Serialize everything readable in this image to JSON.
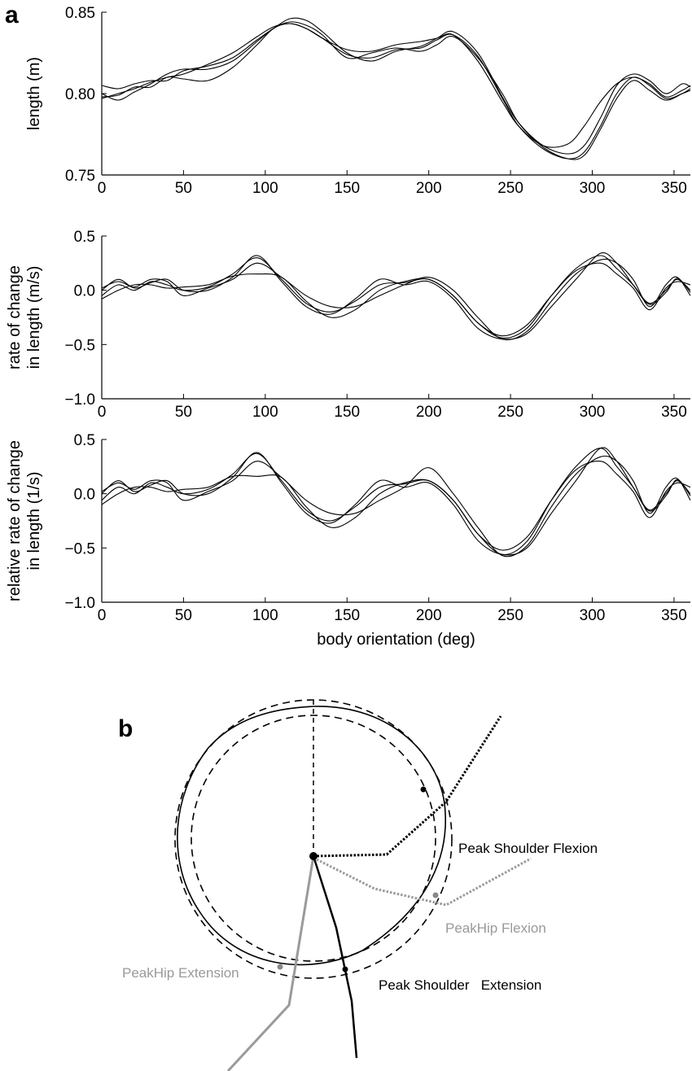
{
  "panel_labels": {
    "a": "a",
    "b": "b"
  },
  "chart_data": [
    {
      "type": "line",
      "ylabel": [
        "length (m)"
      ],
      "xlabel": "",
      "xlim": [
        0,
        360
      ],
      "ylim": [
        0.75,
        0.85
      ],
      "xticks": [
        0,
        50,
        100,
        150,
        200,
        250,
        300,
        350
      ],
      "yticks": [
        0.75,
        0.8,
        0.85
      ],
      "ytick_labels": [
        "0.75",
        "0.80",
        "0.85"
      ],
      "grid": false,
      "series": [
        {
          "x": [
            0,
            10,
            20,
            30,
            40,
            50,
            65,
            80,
            95,
            105,
            115,
            125,
            135,
            150,
            165,
            180,
            195,
            205,
            215,
            230,
            245,
            255,
            270,
            285,
            295,
            305,
            315,
            325,
            335,
            345,
            355,
            360
          ],
          "values": [
            0.797,
            0.8,
            0.803,
            0.807,
            0.81,
            0.812,
            0.818,
            0.825,
            0.835,
            0.841,
            0.843,
            0.84,
            0.834,
            0.827,
            0.826,
            0.83,
            0.832,
            0.834,
            0.836,
            0.82,
            0.795,
            0.78,
            0.768,
            0.769,
            0.78,
            0.795,
            0.806,
            0.81,
            0.806,
            0.798,
            0.802,
            0.805
          ]
        },
        {
          "x": [
            0,
            10,
            20,
            30,
            40,
            50,
            65,
            80,
            95,
            105,
            115,
            125,
            135,
            150,
            165,
            180,
            195,
            205,
            215,
            230,
            245,
            255,
            270,
            285,
            295,
            305,
            315,
            325,
            335,
            345,
            355,
            360
          ],
          "values": [
            0.805,
            0.803,
            0.806,
            0.808,
            0.808,
            0.814,
            0.817,
            0.822,
            0.833,
            0.84,
            0.846,
            0.845,
            0.838,
            0.825,
            0.82,
            0.826,
            0.829,
            0.834,
            0.838,
            0.825,
            0.798,
            0.782,
            0.768,
            0.763,
            0.768,
            0.785,
            0.805,
            0.812,
            0.808,
            0.8,
            0.806,
            0.804
          ]
        },
        {
          "x": [
            0,
            10,
            20,
            30,
            40,
            50,
            65,
            80,
            95,
            105,
            115,
            125,
            135,
            150,
            165,
            180,
            195,
            205,
            215,
            230,
            245,
            255,
            270,
            285,
            295,
            305,
            315,
            325,
            335,
            345,
            355,
            360
          ],
          "values": [
            0.8,
            0.796,
            0.801,
            0.806,
            0.812,
            0.815,
            0.815,
            0.82,
            0.832,
            0.84,
            0.844,
            0.842,
            0.836,
            0.822,
            0.825,
            0.828,
            0.826,
            0.83,
            0.835,
            0.822,
            0.8,
            0.782,
            0.767,
            0.76,
            0.762,
            0.778,
            0.797,
            0.808,
            0.802,
            0.796,
            0.8,
            0.803
          ]
        },
        {
          "x": [
            0,
            10,
            20,
            30,
            40,
            50,
            65,
            80,
            95,
            105,
            115,
            125,
            135,
            150,
            165,
            180,
            195,
            205,
            215,
            230,
            245,
            255,
            270,
            285,
            295,
            305,
            315,
            325,
            335,
            345,
            355,
            360
          ],
          "values": [
            0.798,
            0.799,
            0.804,
            0.804,
            0.81,
            0.809,
            0.808,
            0.816,
            0.83,
            0.84,
            0.843,
            0.84,
            0.834,
            0.824,
            0.822,
            0.827,
            0.828,
            0.833,
            0.836,
            0.823,
            0.797,
            0.78,
            0.766,
            0.76,
            0.764,
            0.78,
            0.8,
            0.81,
            0.805,
            0.797,
            0.8,
            0.802
          ]
        }
      ]
    },
    {
      "type": "line",
      "ylabel": [
        "rate of change",
        "in length (m/s)"
      ],
      "xlabel": "",
      "xlim": [
        0,
        360
      ],
      "ylim": [
        -1.0,
        0.5
      ],
      "xticks": [
        0,
        50,
        100,
        150,
        200,
        250,
        300,
        350
      ],
      "yticks": [
        -1.0,
        -0.5,
        0.0,
        0.5
      ],
      "ytick_labels": [
        "−1.0",
        "−0.5",
        "0.0",
        "0.5"
      ],
      "grid": false,
      "series": [
        {
          "x": [
            0,
            10,
            20,
            30,
            40,
            50,
            65,
            80,
            95,
            110,
            125,
            140,
            155,
            170,
            185,
            200,
            215,
            230,
            245,
            260,
            275,
            290,
            305,
            315,
            325,
            335,
            345,
            352,
            360
          ],
          "values": [
            -0.05,
            0.05,
            0.0,
            0.08,
            0.05,
            0.0,
            0.03,
            0.15,
            0.3,
            0.1,
            -0.12,
            -0.2,
            -0.1,
            0.05,
            0.07,
            0.1,
            -0.05,
            -0.3,
            -0.44,
            -0.35,
            -0.05,
            0.2,
            0.32,
            0.2,
            0.05,
            -0.12,
            0.0,
            0.1,
            0.0
          ]
        },
        {
          "x": [
            0,
            10,
            20,
            30,
            40,
            50,
            65,
            80,
            95,
            110,
            125,
            140,
            155,
            170,
            185,
            200,
            215,
            230,
            245,
            260,
            275,
            290,
            305,
            315,
            325,
            335,
            345,
            352,
            360
          ],
          "values": [
            0.02,
            0.08,
            0.03,
            0.1,
            0.08,
            -0.05,
            0.02,
            0.1,
            0.25,
            0.12,
            -0.05,
            -0.15,
            -0.15,
            -0.05,
            0.05,
            0.12,
            0.0,
            -0.25,
            -0.45,
            -0.38,
            -0.1,
            0.15,
            0.28,
            0.25,
            0.1,
            -0.15,
            0.05,
            0.12,
            -0.05
          ]
        },
        {
          "x": [
            0,
            10,
            20,
            30,
            40,
            50,
            65,
            80,
            95,
            110,
            125,
            140,
            155,
            170,
            185,
            200,
            215,
            230,
            245,
            260,
            275,
            290,
            305,
            315,
            325,
            335,
            345,
            352,
            360
          ],
          "values": [
            -0.08,
            0.0,
            0.05,
            0.05,
            0.02,
            0.03,
            0.05,
            0.13,
            0.15,
            0.12,
            -0.1,
            -0.25,
            -0.18,
            0.0,
            0.08,
            0.1,
            -0.05,
            -0.3,
            -0.42,
            -0.32,
            -0.05,
            0.18,
            0.25,
            0.15,
            0.02,
            -0.18,
            0.02,
            0.08,
            0.05
          ]
        },
        {
          "x": [
            0,
            10,
            20,
            30,
            40,
            50,
            65,
            80,
            95,
            110,
            125,
            140,
            155,
            170,
            185,
            200,
            215,
            230,
            245,
            260,
            275,
            290,
            305,
            315,
            325,
            335,
            345,
            352,
            360
          ],
          "values": [
            0.0,
            0.1,
            0.02,
            0.07,
            0.1,
            0.0,
            0.0,
            0.12,
            0.32,
            0.08,
            -0.15,
            -0.22,
            -0.08,
            0.1,
            0.05,
            0.08,
            -0.08,
            -0.35,
            -0.45,
            -0.4,
            -0.15,
            0.1,
            0.34,
            0.25,
            0.05,
            -0.13,
            -0.02,
            0.11,
            -0.02
          ]
        }
      ]
    },
    {
      "type": "line",
      "ylabel": [
        "relative rate of change",
        "in length (1/s)"
      ],
      "xlabel": "body orientation (deg)",
      "xlim": [
        0,
        360
      ],
      "ylim": [
        -1.0,
        0.5
      ],
      "xticks": [
        0,
        50,
        100,
        150,
        200,
        250,
        300,
        350
      ],
      "yticks": [
        -1.0,
        -0.5,
        0.0,
        0.5
      ],
      "ytick_labels": [
        "−1.0",
        "−0.5",
        "0.0",
        "0.5"
      ],
      "grid": false,
      "series": [
        {
          "x": [
            0,
            10,
            20,
            30,
            40,
            50,
            65,
            80,
            95,
            110,
            125,
            140,
            155,
            170,
            185,
            200,
            215,
            230,
            245,
            260,
            275,
            290,
            305,
            315,
            325,
            335,
            345,
            352,
            360
          ],
          "values": [
            -0.06,
            0.06,
            0.0,
            0.1,
            0.06,
            0.0,
            0.04,
            0.18,
            0.37,
            0.12,
            -0.15,
            -0.25,
            -0.12,
            0.06,
            0.09,
            0.12,
            -0.06,
            -0.37,
            -0.56,
            -0.44,
            -0.06,
            0.25,
            0.42,
            0.25,
            0.06,
            -0.15,
            0.0,
            0.12,
            0.0
          ]
        },
        {
          "x": [
            0,
            10,
            20,
            30,
            40,
            50,
            65,
            80,
            95,
            110,
            125,
            140,
            155,
            170,
            185,
            200,
            215,
            230,
            245,
            260,
            275,
            290,
            305,
            315,
            325,
            335,
            345,
            352,
            360
          ],
          "values": [
            0.02,
            0.1,
            0.04,
            0.12,
            0.1,
            -0.06,
            0.02,
            0.12,
            0.3,
            0.15,
            -0.06,
            -0.18,
            -0.18,
            -0.06,
            0.06,
            0.24,
            0.0,
            -0.31,
            -0.57,
            -0.48,
            -0.12,
            0.18,
            0.34,
            0.3,
            0.12,
            -0.18,
            0.06,
            0.14,
            -0.06
          ]
        },
        {
          "x": [
            0,
            10,
            20,
            30,
            40,
            50,
            65,
            80,
            95,
            110,
            125,
            140,
            155,
            170,
            185,
            200,
            215,
            230,
            245,
            260,
            275,
            290,
            305,
            315,
            325,
            335,
            345,
            352,
            360
          ],
          "values": [
            -0.1,
            0.0,
            0.06,
            0.06,
            0.02,
            0.04,
            0.06,
            0.16,
            0.16,
            0.15,
            -0.12,
            -0.31,
            -0.22,
            0.0,
            0.1,
            0.12,
            -0.06,
            -0.37,
            -0.52,
            -0.4,
            -0.06,
            0.22,
            0.3,
            0.18,
            0.02,
            -0.22,
            0.02,
            0.1,
            0.06
          ]
        },
        {
          "x": [
            0,
            10,
            20,
            30,
            40,
            50,
            65,
            80,
            95,
            110,
            125,
            140,
            155,
            170,
            185,
            200,
            215,
            230,
            245,
            260,
            275,
            290,
            305,
            315,
            325,
            335,
            345,
            352,
            360
          ],
          "values": [
            0.0,
            0.12,
            0.02,
            0.08,
            0.12,
            0.0,
            0.0,
            0.15,
            0.38,
            0.1,
            -0.18,
            -0.27,
            -0.1,
            0.12,
            0.06,
            0.1,
            -0.1,
            -0.43,
            -0.56,
            -0.5,
            -0.18,
            0.12,
            0.42,
            0.3,
            0.06,
            -0.16,
            -0.02,
            0.13,
            -0.02
          ]
        }
      ]
    }
  ],
  "diagram": {
    "labels": {
      "peak_shoulder_flexion": "Peak Shoulder Flexion",
      "peak_hip_flexion": "PeakHip Flexion",
      "peak_hip_extension": "PeakHip Extension",
      "peak_shoulder_extension": "Peak Shoulder   Extension"
    },
    "colors": {
      "shoulder": "#000000",
      "hip": "#999999"
    }
  }
}
